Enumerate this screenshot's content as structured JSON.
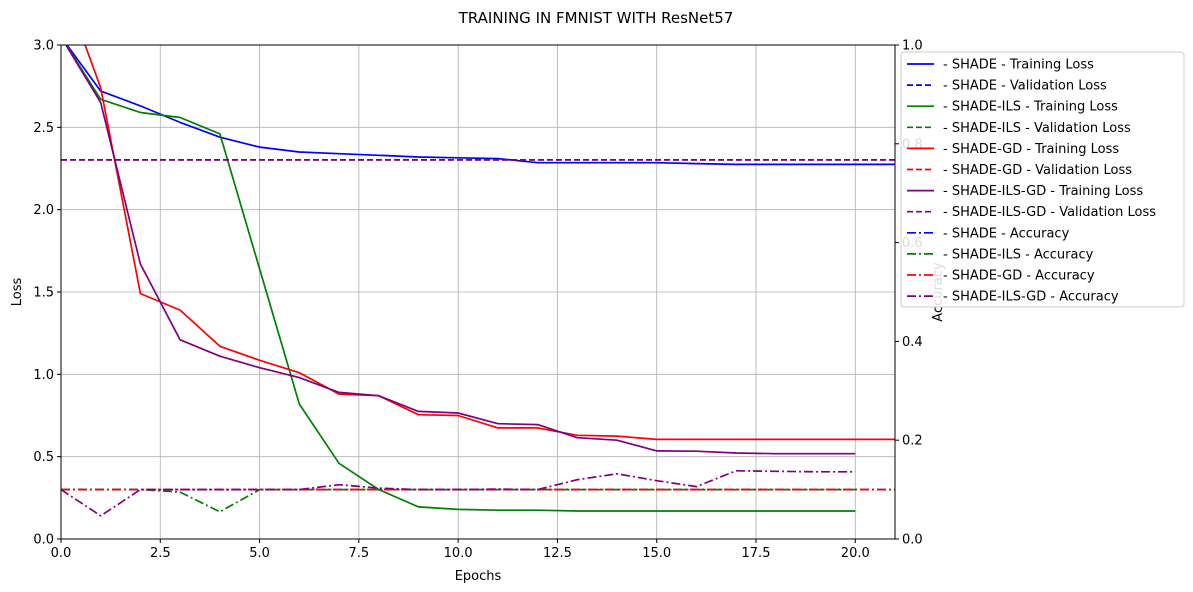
{
  "chart_data": {
    "type": "line",
    "title": "TRAINING IN FMNIST WITH ResNet57",
    "xlabel": "Epochs",
    "ylabel": "Loss",
    "y2label": "Accuracy",
    "xlim": [
      0,
      21
    ],
    "ylim": [
      0,
      3.0
    ],
    "y2lim": [
      0,
      1.0
    ],
    "xticks": [
      "0.0",
      "2.5",
      "5.0",
      "7.5",
      "10.0",
      "12.5",
      "15.0",
      "17.5",
      "20.0"
    ],
    "xtick_values": [
      0,
      2.5,
      5,
      7.5,
      10,
      12.5,
      15,
      17.5,
      20
    ],
    "yticks": [
      "0.0",
      "0.5",
      "1.0",
      "1.5",
      "2.0",
      "2.5",
      "3.0"
    ],
    "ytick_values": [
      0,
      0.5,
      1,
      1.5,
      2,
      2.5,
      3
    ],
    "y2ticks": [
      "0.0",
      "0.2",
      "0.4",
      "0.6",
      "0.8",
      "1.0"
    ],
    "y2tick_values": [
      0,
      0.2,
      0.4,
      0.6,
      0.8,
      1.0
    ],
    "grid": true,
    "legend_placement": "right, outside plot",
    "series": [
      {
        "name": " - SHADE - Training Loss",
        "color": "#0000ff",
        "style": "solid",
        "axis": "left",
        "x": [
          0,
          1,
          2,
          3,
          4,
          5,
          6,
          7,
          8,
          9,
          10,
          11,
          12,
          13,
          14,
          15,
          16,
          17,
          18,
          19,
          20,
          21
        ],
        "y": [
          3.05,
          2.72,
          2.63,
          2.53,
          2.44,
          2.38,
          2.35,
          2.34,
          2.33,
          2.32,
          2.315,
          2.31,
          2.285,
          2.285,
          2.285,
          2.285,
          2.28,
          2.275,
          2.275,
          2.275,
          2.275,
          2.275
        ]
      },
      {
        "name": " - SHADE - Validation Loss",
        "color": "#0000ff",
        "style": "dashed",
        "axis": "left",
        "x": [
          0,
          21
        ],
        "y": [
          2.303,
          2.303
        ]
      },
      {
        "name": " - SHADE-ILS - Training Loss",
        "color": "#008000",
        "style": "solid",
        "axis": "left",
        "x": [
          0,
          1,
          2,
          3,
          4,
          5,
          6,
          7,
          8,
          9,
          10,
          11,
          12,
          13,
          14,
          15,
          16,
          17,
          18,
          19,
          20
        ],
        "y": [
          3.05,
          2.67,
          2.59,
          2.56,
          2.46,
          1.64,
          0.82,
          0.46,
          0.3,
          0.195,
          0.18,
          0.175,
          0.175,
          0.17,
          0.17,
          0.17,
          0.17,
          0.17,
          0.17,
          0.17,
          0.17
        ]
      },
      {
        "name": " - SHADE-ILS - Validation Loss",
        "color": "#008000",
        "style": "dashed",
        "axis": "left",
        "x": [
          0,
          21
        ],
        "y": [
          2.303,
          2.303
        ]
      },
      {
        "name": " - SHADE-GD - Training Loss",
        "color": "#ff0000",
        "style": "solid",
        "axis": "left",
        "x": [
          0,
          1,
          2,
          3,
          4,
          5,
          6,
          7,
          8,
          9,
          10,
          11,
          12,
          13,
          14,
          15,
          16,
          17,
          18,
          19,
          20,
          21
        ],
        "y": [
          3.4,
          2.74,
          1.49,
          1.39,
          1.17,
          1.085,
          1.01,
          0.88,
          0.87,
          0.755,
          0.75,
          0.675,
          0.675,
          0.63,
          0.625,
          0.605,
          0.605,
          0.605,
          0.605,
          0.605,
          0.605,
          0.605
        ]
      },
      {
        "name": " - SHADE-GD - Validation Loss",
        "color": "#ff0000",
        "style": "dashed",
        "axis": "left",
        "x": [
          0,
          21
        ],
        "y": [
          2.303,
          2.303
        ]
      },
      {
        "name": " - SHADE-ILS-GD - Training Loss",
        "color": "#800080",
        "style": "solid",
        "axis": "left",
        "x": [
          0,
          1,
          2,
          3,
          4,
          5,
          6,
          7,
          8,
          9,
          10,
          11,
          12,
          13,
          14,
          15,
          16,
          17,
          18,
          19,
          20
        ],
        "y": [
          3.05,
          2.65,
          1.67,
          1.21,
          1.11,
          1.04,
          0.98,
          0.89,
          0.87,
          0.775,
          0.765,
          0.7,
          0.695,
          0.615,
          0.6,
          0.535,
          0.533,
          0.522,
          0.518,
          0.518,
          0.518
        ]
      },
      {
        "name": " - SHADE-ILS-GD - Validation Loss",
        "color": "#800080",
        "style": "dashed",
        "axis": "left",
        "x": [
          0,
          21
        ],
        "y": [
          2.303,
          2.303
        ]
      },
      {
        "name": " - SHADE - Accuracy",
        "color": "#0000ff",
        "style": "dashdot",
        "axis": "right",
        "x": [
          0,
          21
        ],
        "y": [
          0.1,
          0.1
        ]
      },
      {
        "name": " - SHADE-ILS - Accuracy",
        "color": "#008000",
        "style": "dashdot",
        "axis": "right",
        "x": [
          0,
          1,
          2,
          3,
          4,
          5,
          6,
          7,
          8,
          9,
          10,
          11,
          12,
          13,
          14,
          15,
          16,
          17,
          18,
          19,
          20
        ],
        "y": [
          0.1,
          0.1,
          0.1,
          0.095,
          0.055,
          0.1,
          0.1,
          0.1,
          0.1,
          0.1,
          0.1,
          0.1,
          0.1,
          0.1,
          0.1,
          0.1,
          0.1,
          0.1,
          0.1,
          0.1,
          0.1
        ]
      },
      {
        "name": " - SHADE-GD - Accuracy",
        "color": "#ff0000",
        "style": "dashdot",
        "axis": "right",
        "x": [
          0,
          21
        ],
        "y": [
          0.1,
          0.1
        ]
      },
      {
        "name": " - SHADE-ILS-GD - Accuracy",
        "color": "#800080",
        "style": "dashdot",
        "axis": "right",
        "x": [
          0,
          1,
          2,
          3,
          4,
          5,
          6,
          7,
          8,
          9,
          10,
          11,
          12,
          13,
          14,
          15,
          16,
          17,
          18,
          19,
          20
        ],
        "y": [
          0.1,
          0.047,
          0.1,
          0.1,
          0.1,
          0.1,
          0.1,
          0.11,
          0.103,
          0.1,
          0.1,
          0.101,
          0.1,
          0.12,
          0.132,
          0.118,
          0.106,
          0.138,
          0.137,
          0.136,
          0.136
        ]
      }
    ]
  }
}
